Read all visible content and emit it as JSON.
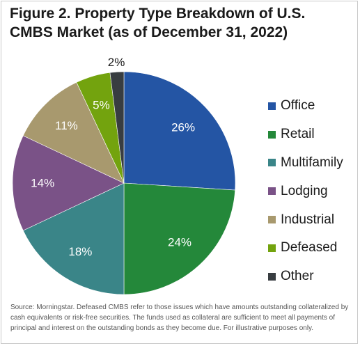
{
  "chart_data": {
    "type": "pie",
    "title": "Figure 2. Property Type Breakdown of U.S. CMBS Market (as of December 31, 2022)",
    "categories": [
      "Office",
      "Retail",
      "Multifamily",
      "Lodging",
      "Industrial",
      "Defeased",
      "Other"
    ],
    "values": [
      26,
      24,
      18,
      14,
      11,
      5,
      2
    ],
    "labels": [
      "26%",
      "24%",
      "18%",
      "14%",
      "11%",
      "5%",
      "2%"
    ],
    "colors": [
      "#2455a4",
      "#24883a",
      "#3a8588",
      "#7a5287",
      "#a8996e",
      "#73a30e",
      "#383d41"
    ],
    "start": "12 o'clock, clockwise",
    "legend": "right"
  },
  "source": "Source: Morningstar. Defeased CMBS refer to those issues which have amounts outstanding collateralized by cash equivalents or risk-free securities. The funds used as collateral are sufficient to meet all payments of principal and interest on the outstanding bonds as they become due. For illustrative purposes only."
}
